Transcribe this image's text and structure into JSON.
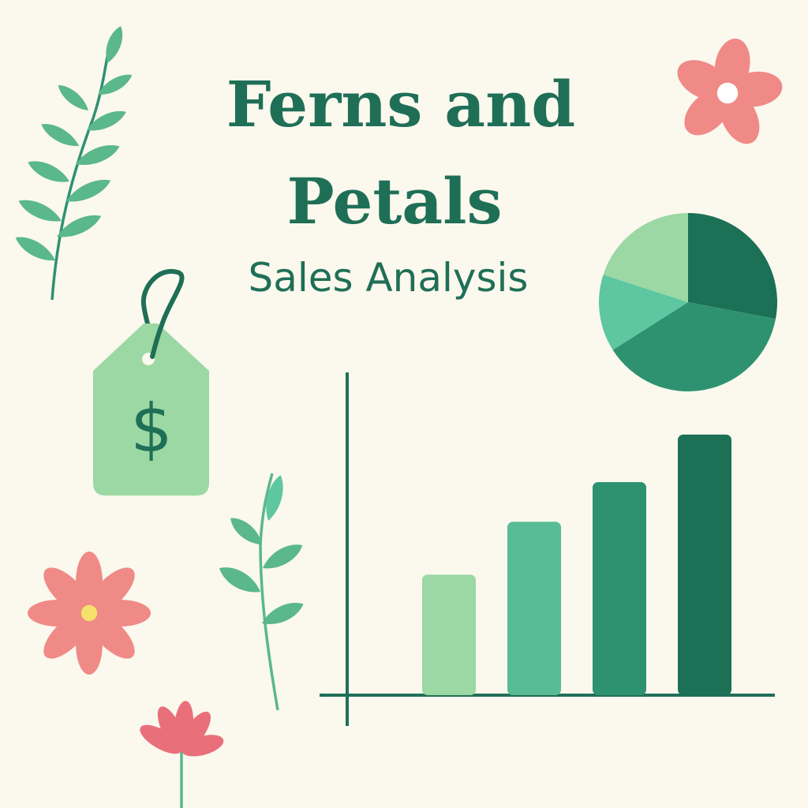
{
  "title": {
    "line1": "Ferns and",
    "line2": "Petals"
  },
  "subtitle": "Sales Analysis",
  "price_tag": {
    "symbol": "$"
  },
  "colors": {
    "background": "#FBF8EE",
    "title": "#1F6F57",
    "dark_green": "#1B7055",
    "mid_green": "#2E9271",
    "teal_green": "#5EC7A1",
    "light_green": "#9BD8A3",
    "leaf": "#5AB88A",
    "flower_pink": "#F08A86",
    "flower_red": "#E9707A",
    "flower_center": "#F5E26A"
  },
  "icons": [
    "fern-leaf-icon",
    "flower-icon",
    "price-tag-icon",
    "sprig-icon",
    "dollar-sign-icon"
  ],
  "chart_data": [
    {
      "type": "bar",
      "categories": [
        "",
        "",
        "",
        ""
      ],
      "values": [
        45,
        65,
        80,
        98
      ],
      "ylim": [
        0,
        120
      ],
      "colors": [
        "#9BD8A3",
        "#57BC96",
        "#2E9271",
        "#1B7055"
      ],
      "grid": false,
      "title": "",
      "xlabel": "",
      "ylabel": ""
    },
    {
      "type": "pie",
      "values": [
        28,
        38,
        14,
        20
      ],
      "colors": [
        "#1B7055",
        "#2E9271",
        "#5EC7A1",
        "#9BD8A3"
      ],
      "start_angle_deg": 0
    }
  ]
}
